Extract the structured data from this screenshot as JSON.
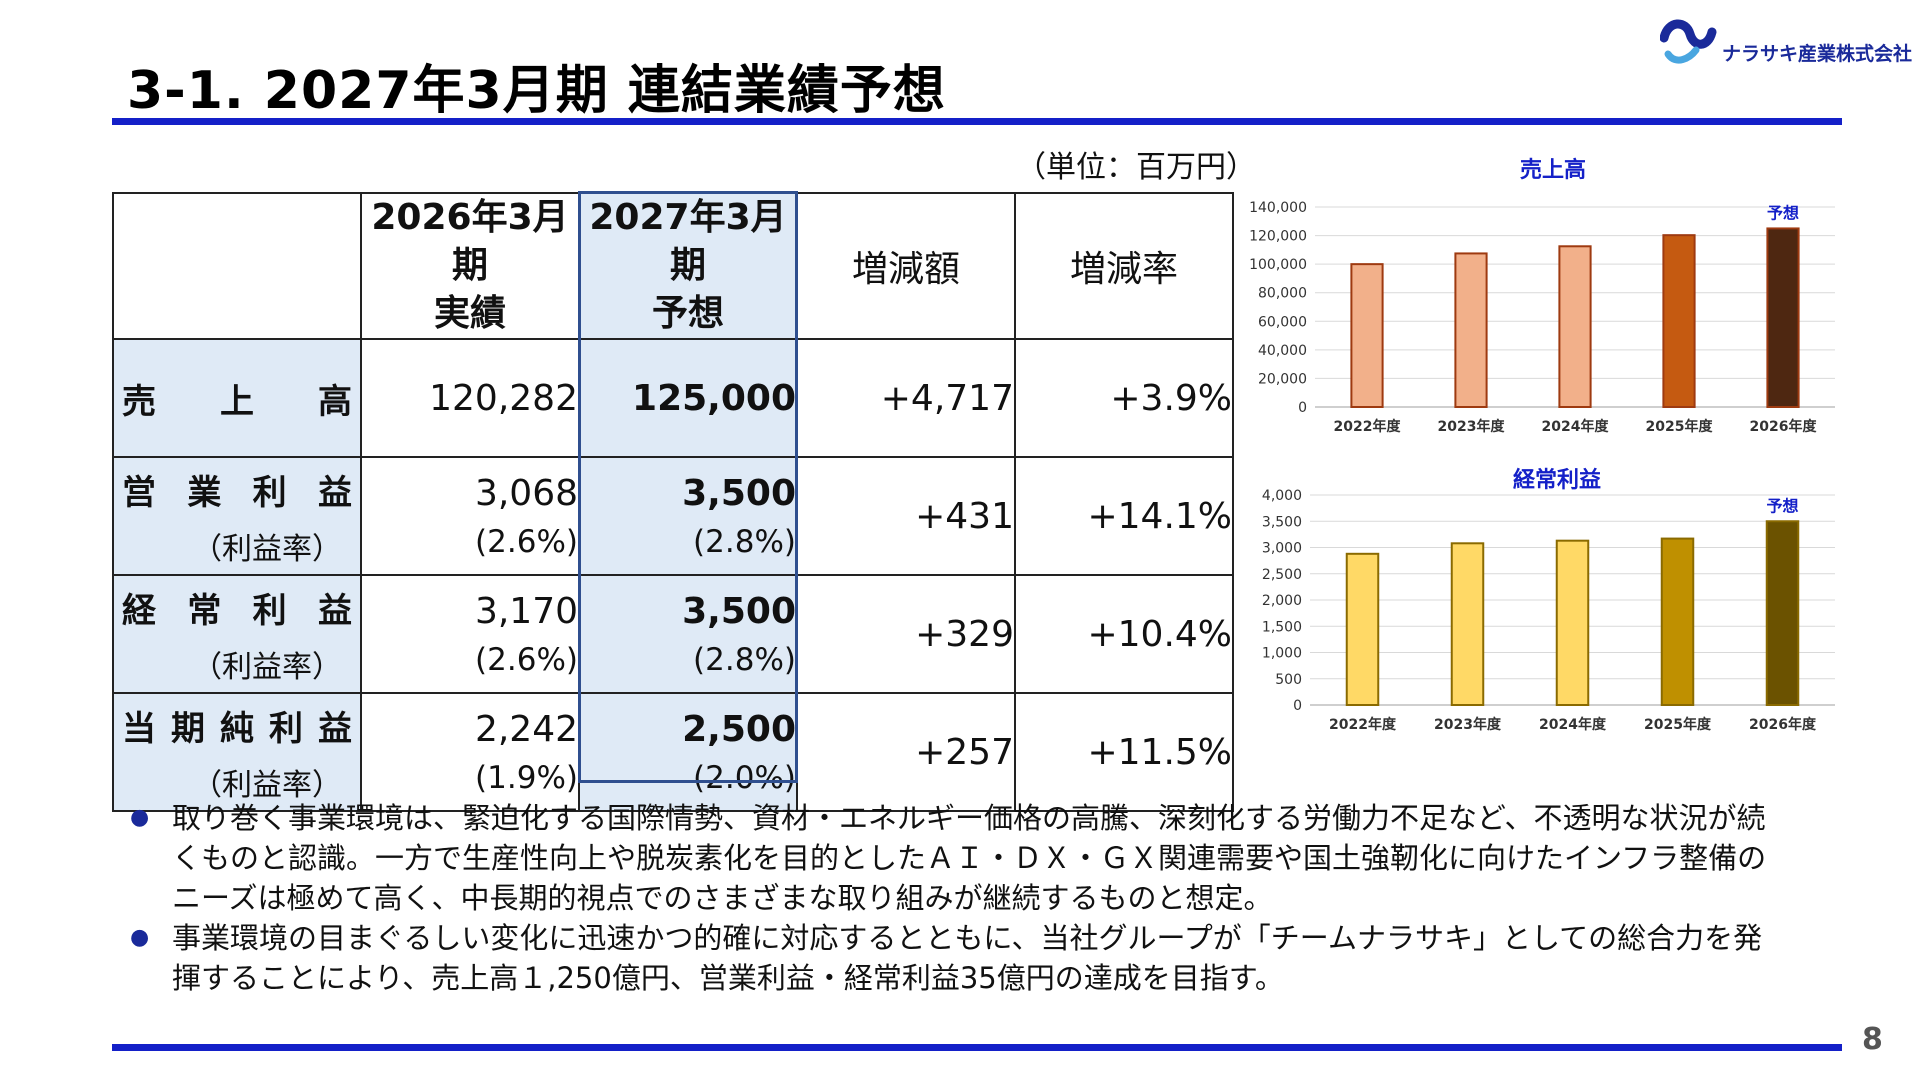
{
  "header": {
    "title": "3-1. 2027年3月期 連結業績予想",
    "logo_text": "ナラサキ産業株式会社",
    "unit_note": "（単位：百万円）"
  },
  "table": {
    "columns": [
      "",
      "2026年3月期\n実績",
      "2027年3月期\n予想",
      "増減額",
      "増減率"
    ],
    "col_hdr_2026_l1": "2026年3月期",
    "col_hdr_2026_l2": "実績",
    "col_hdr_2027_l1": "2027年3月期",
    "col_hdr_2027_l2": "予想",
    "col_hdr_diff": "増減額",
    "col_hdr_rate": "増減率",
    "rows": [
      {
        "label": [
          "売",
          "上",
          "高"
        ],
        "actual": "120,282",
        "forecast": "125,000",
        "diff": "+4,717",
        "rate": "+3.9%"
      },
      {
        "label": [
          "営",
          "業",
          "利",
          "益"
        ],
        "sub_label": "（利益率）",
        "actual": "3,068",
        "actual_sub": "(2.6%)",
        "forecast": "3,500",
        "forecast_sub": "(2.8%)",
        "diff": "+431",
        "rate": "+14.1%"
      },
      {
        "label": [
          "経",
          "常",
          "利",
          "益"
        ],
        "sub_label": "（利益率）",
        "actual": "3,170",
        "actual_sub": "(2.6%)",
        "forecast": "3,500",
        "forecast_sub": "(2.8%)",
        "diff": "+329",
        "rate": "+10.4%"
      },
      {
        "label": [
          "当",
          "期",
          "純",
          "利",
          "益"
        ],
        "sub_label": "（利益率）",
        "actual": "2,242",
        "actual_sub": "(1.9%)",
        "forecast": "2,500",
        "forecast_sub": "(2.0%)",
        "diff": "+257",
        "rate": "+11.5%"
      }
    ]
  },
  "chart_data": [
    {
      "type": "bar",
      "title": "売上高",
      "categories": [
        "2022年度",
        "2023年度",
        "2024年度",
        "2025年度",
        "2026年度"
      ],
      "values": [
        100000,
        107500,
        112500,
        120282,
        125000
      ],
      "ylim": [
        0,
        140000
      ],
      "yticks": [
        "0",
        "20,000",
        "40,000",
        "60,000",
        "80,000",
        "100,000",
        "120,000",
        "140,000"
      ],
      "annotation": "予想",
      "bar_colors": [
        "#f2b08a",
        "#f2b08a",
        "#f2b08a",
        "#c55a11",
        "#4e2711"
      ],
      "bar_edge": "#9e3a10",
      "grid": true
    },
    {
      "type": "bar",
      "title": "経常利益",
      "categories": [
        "2022年度",
        "2023年度",
        "2024年度",
        "2025年度",
        "2026年度"
      ],
      "values": [
        2880,
        3080,
        3130,
        3170,
        3500
      ],
      "ylim": [
        0,
        4000
      ],
      "yticks": [
        "0",
        "500",
        "1,000",
        "1,500",
        "2,000",
        "2,500",
        "3,000",
        "3,500",
        "4,000"
      ],
      "annotation": "予想",
      "bar_colors": [
        "#ffd966",
        "#ffd966",
        "#ffd966",
        "#bf9000",
        "#6b5200"
      ],
      "bar_edge": "#8a6a00",
      "grid": true
    }
  ],
  "bullets": [
    "取り巻く事業環境は、緊迫化する国際情勢、資材・エネルギー価格の高騰、深刻化する労働力不足など、不透明な状況が続くものと認識。一方で生産性向上や脱炭素化を目的としたＡＩ・ＤＸ・ＧＸ関連需要や国土強靭化に向けたインフラ整備のニーズは極めて高く、中長期的視点でのさまざまな取り組みが継続するものと想定。",
    "事業環境の目まぐるしい変化に迅速かつ的確に対応するとともに、当社グループが「チームナラサキ」としての総合力を発揮することにより、売上高１,250億円、営業利益・経常利益35億円の達成を目指す。"
  ],
  "bullet_symbol": "●",
  "page_number": "8",
  "colors": {
    "accent_blue": "#1420c8",
    "label_fill": "#dfeaf6",
    "forecast_border": "#2f4f8f"
  }
}
